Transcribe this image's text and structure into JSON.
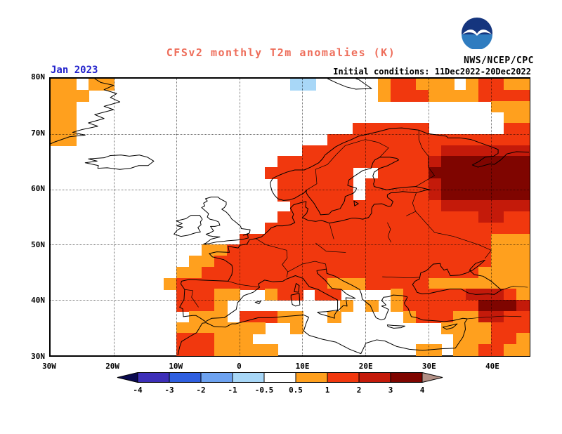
{
  "header": {
    "title": "CFSv2 monthly T2m anomalies (K)",
    "agency": "NWS/NCEP/CPC",
    "date_label": "Jan 2023",
    "init_label": "Initial conditions: 11Dec2022-20Dec2022"
  },
  "colors": {
    "title_color": "#ee6d5a",
    "date_color": "#2222cc",
    "frame_color": "#000000",
    "logo_dark_blue": "#15357e",
    "logo_light_blue": "#2f7cc0"
  },
  "map": {
    "lon_min": -30,
    "lon_max": 46,
    "lat_min": 30,
    "lat_max": 80,
    "lat_ticks": [
      {
        "lat": 80,
        "label": "80N"
      },
      {
        "lat": 70,
        "label": "70N"
      },
      {
        "lat": 60,
        "label": "60N"
      },
      {
        "lat": 50,
        "label": "50N"
      },
      {
        "lat": 40,
        "label": "40N"
      },
      {
        "lat": 30,
        "label": "30N"
      }
    ],
    "lon_ticks": [
      {
        "lon": -30,
        "label": "30W"
      },
      {
        "lon": -20,
        "label": "20W"
      },
      {
        "lon": -10,
        "label": "10W"
      },
      {
        "lon": 0,
        "label": "0"
      },
      {
        "lon": 10,
        "label": "10E"
      },
      {
        "lon": 20,
        "label": "20E"
      },
      {
        "lon": 30,
        "label": "30E"
      },
      {
        "lon": 40,
        "label": "40E"
      }
    ],
    "grid_lons": [
      -20,
      -10,
      0,
      10,
      20,
      30,
      40
    ],
    "grid_lats": [
      40,
      50,
      60,
      70
    ]
  },
  "palette": {
    "b": "#a8d7f7",
    "o": "#ffa01e",
    "r": "#f1380e",
    "R": "#c41a0a",
    "M": "#7f0500"
  },
  "chart_data": {
    "type": "heatmap",
    "title": "CFSv2 monthly T2m anomalies (K)",
    "units": "K",
    "x_range_lon": [
      -30,
      46
    ],
    "y_range_lat": [
      30,
      80
    ],
    "cell_size_deg": 2,
    "code_legend": {
      ".": "no shading (-0.5 to 0.5 K)",
      "b": "-1 to -0.5 K",
      "o": "0.5 to 1 K",
      "r": "1 to 2 K",
      "R": "2 to 3 K",
      "M": "3 to 4 K"
    },
    "rows_lat_desc": [
      "oo.oo..............bb.....orrooo.orroo",
      "ooo.......................orrroooorrrr",
      "oo.................................ooo",
      "oo..................................oo",
      "oo......................rrrrrr......rr",
      "oo....................rrrrrrrrrrrrrrrr",
      "....................rrrrrrrrrrrRRRRRRR",
      "..................rrrrrrrrrrrrRMMMMMMM",
      ".................rrrrrrr..rrrrMMMMMMMM",
      "..................rrrrrr.rrrrrRMMMMMMM",
      "..................rrrrrr.rrrrrRMMMMMMM",
      "...................rrrrrrrrrrrrRRRRRRR",
      "..................rrrrrrrrrrrrrrrrRRrr",
      ".................rrrrrrrrrrrrrrrrrrrrr",
      "...............rrrrrrrrrrrrrrrrrrrrooo",
      "............oorrrrrrrrrrrrrrrrrrrrrooo",
      "...........oorrrrrrrrrrrrrrrrrrrrrrooo",
      "..........oorrrrrrrrrrrrrrrrrrrrrroooo",
      ".........orrrrrrrrrrrrooorrrrroooooooo",
      "..........rrroo..orr.rr....orrrrrRRRro",
      "..........rrro.........o.o.orrrrrrMMMR",
      "...........ooo.rrroo..o.....orrrooRRrr",
      "..........ooooooo..o...........oooorrr",
      "..........rrrooo................ooorro",
      "..........rrrooooo...........oo.oorroo"
    ]
  },
  "colorbar": {
    "labels": [
      "-4",
      "-3",
      "-2",
      "-1",
      "-0.5",
      "0.5",
      "1",
      "2",
      "3",
      "4"
    ],
    "segments": [
      "#3d2fb8",
      "#2f5fe0",
      "#6da2f0",
      "#a8d7f7",
      "#ffffff",
      "#ffa01e",
      "#f1380e",
      "#c41a0a",
      "#7f0500"
    ],
    "segment_ranges": [
      "-4..-3",
      "-3..-2",
      "-2..-1",
      "-1..-0.5",
      "-0.5..0.5",
      "0.5..1",
      "1..2",
      "2..3",
      "3..4"
    ],
    "arrow_left": "#0a0a50",
    "arrow_right": "#b29086"
  }
}
